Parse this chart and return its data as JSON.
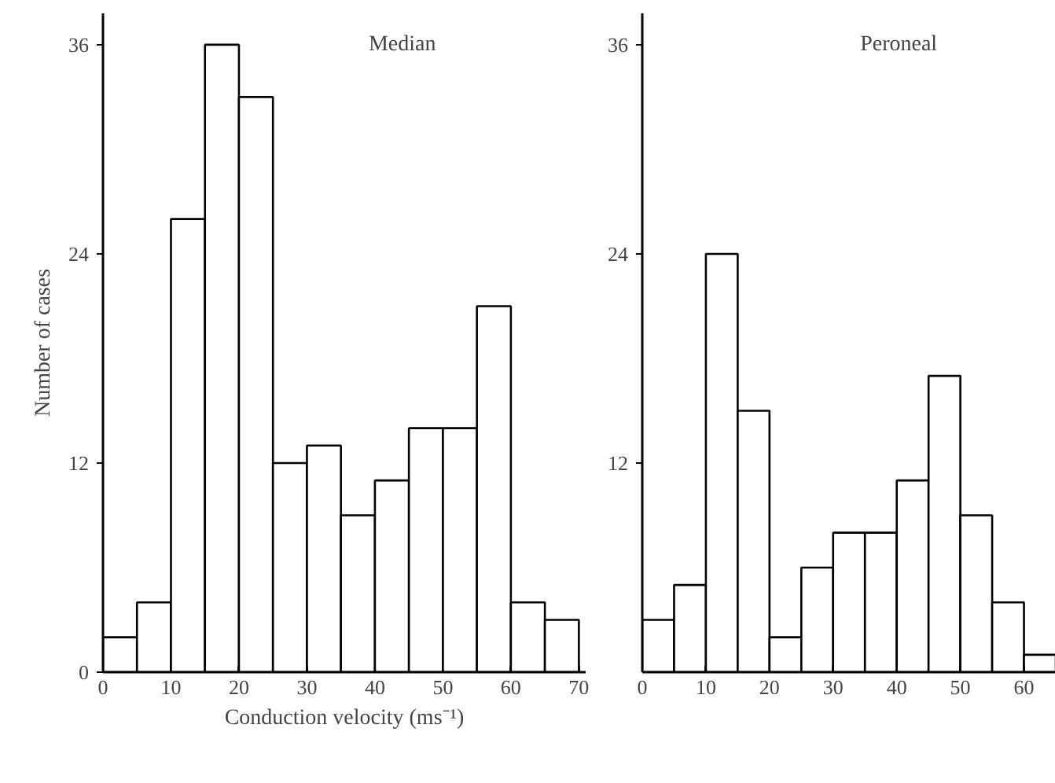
{
  "chart_data": [
    {
      "type": "histogram",
      "title": "Median",
      "xlabel": "Conduction velocity (ms⁻¹)",
      "ylabel": "Number of cases",
      "bins": [
        0,
        5,
        10,
        15,
        20,
        25,
        30,
        35,
        40,
        45,
        50,
        55,
        60,
        65,
        70
      ],
      "values": [
        2,
        4,
        26,
        36,
        33,
        12,
        13,
        9,
        11,
        14,
        14,
        21,
        4,
        3
      ],
      "color": "#ffffff",
      "xlim": [
        0,
        71
      ],
      "ylim": [
        0,
        37.8
      ],
      "xticks": [
        0,
        10,
        20,
        30,
        40,
        50,
        60,
        70
      ],
      "yticks": [
        0,
        12,
        24,
        36
      ],
      "grid": false
    },
    {
      "type": "histogram",
      "title": "Peroneal",
      "bins": [
        0,
        5,
        10,
        15,
        20,
        25,
        30,
        35,
        40,
        45,
        50,
        55,
        60,
        65
      ],
      "values": [
        3,
        5,
        24,
        15,
        2,
        6,
        8,
        8,
        11,
        17,
        9,
        4,
        1
      ],
      "color": "#ffffff",
      "xlim": [
        0,
        65
      ],
      "ylim": [
        0,
        37.8
      ],
      "xticks": [
        0,
        10,
        20,
        30,
        40,
        50,
        60
      ],
      "yticks": [
        12,
        24,
        36
      ],
      "grid": false
    }
  ]
}
